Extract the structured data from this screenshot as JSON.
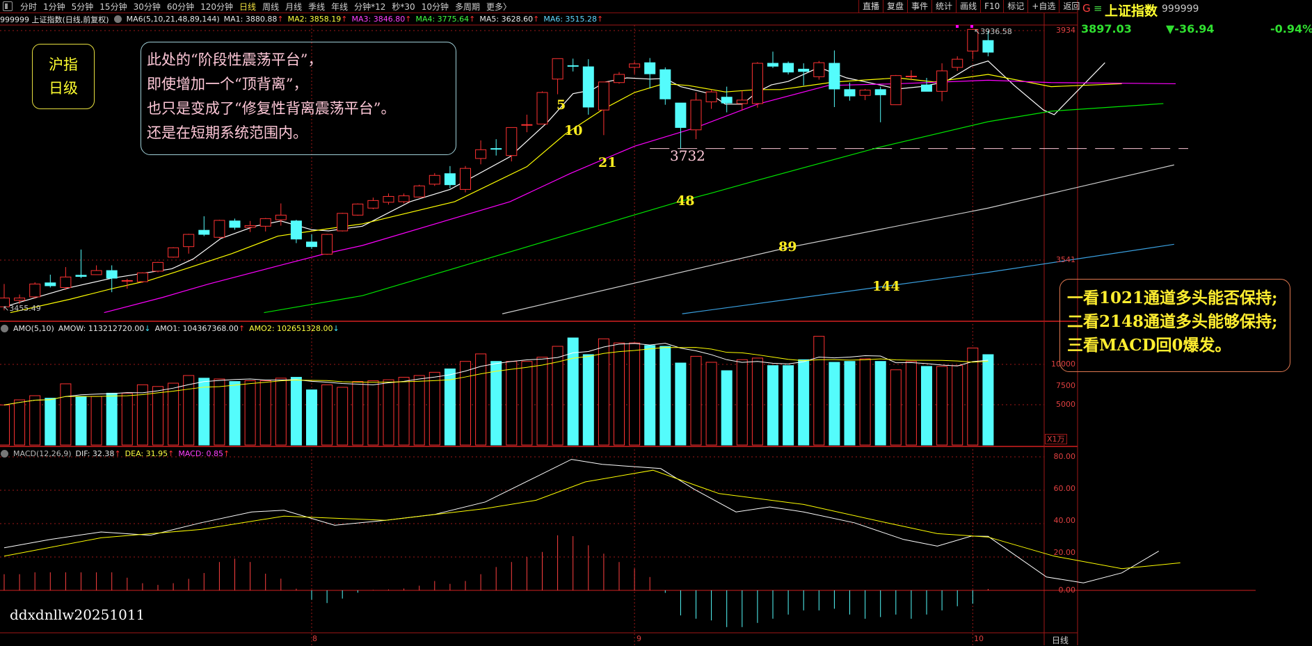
{
  "toolbar": {
    "periods": [
      "分时",
      "1分钟",
      "5分钟",
      "15分钟",
      "30分钟",
      "60分钟",
      "120分钟",
      "日线",
      "周线",
      "月线",
      "季线",
      "年线",
      "分钟*12",
      "秒*30",
      "10分钟",
      "多周期",
      "更多〉"
    ],
    "active_period": "日线",
    "right_buttons": [
      "直播",
      "复盘",
      "事件",
      "统计",
      "画线",
      "F10",
      "标记",
      "+自选",
      "返回"
    ]
  },
  "quote": {
    "g_label": "G",
    "menu_icon": "≡",
    "name": "上证指数",
    "code": "999999",
    "price": "3897.03",
    "change": "▼-36.94",
    "change_pct": "-0.94%"
  },
  "ma_header": {
    "title": "999999 上证指数(日线,前复权)",
    "indicator": "MA6(5,10,21,48,89,144)",
    "items": [
      {
        "label": "MA1: 3880.88",
        "arrow": "↑"
      },
      {
        "label": "MA2: 3858.19",
        "arrow": "↑"
      },
      {
        "label": "MA3: 3846.80",
        "arrow": "↑"
      },
      {
        "label": "MA4: 3775.64",
        "arrow": "↑"
      },
      {
        "label": "MA5: 3628.60",
        "arrow": "↑"
      },
      {
        "label": "MA6: 3515.28",
        "arrow": "↑"
      }
    ]
  },
  "amo_header": {
    "indicator": "AMO(5,10)",
    "items": [
      {
        "label": "AMOW: 113212720.00",
        "arrow": "↓"
      },
      {
        "label": "AMO1: 104367368.00",
        "arrow": "↑"
      },
      {
        "label": "AMO2: 102651328.00",
        "arrow": "↓"
      }
    ]
  },
  "macd_header": {
    "indicator": "MACD(12,26,9)",
    "items": [
      {
        "label": "DIF: 32.38",
        "arrow": "↑"
      },
      {
        "label": "DEA: 31.95",
        "arrow": "↑"
      },
      {
        "label": "MACD: 0.85",
        "arrow": "↑"
      }
    ]
  },
  "annotations": {
    "left_box": [
      "沪指",
      "日级"
    ],
    "middle_box": [
      "此处的“阶段性震荡平台”，",
      "即使增加一个“顶背离”，",
      "也只是变成了“修复性背离震荡平台”。",
      "还是在短期系统范围内。"
    ],
    "right_box": [
      "一看1021通道多头能否保持;",
      "二看2148通道多头能够保持;",
      "三看MACD回0爆发。"
    ],
    "ma_labels": [
      "5",
      "10",
      "21",
      "48",
      "89",
      "144"
    ],
    "watermark": "ddxdnllw20251011",
    "high_marker": "3936.58",
    "low_marker": "3455.49",
    "support_label": "3732"
  },
  "axes": {
    "price_ticks": [
      "3934",
      "3541"
    ],
    "volume_ticks": [
      "10000",
      "7500",
      "5000"
    ],
    "volume_unit": "X1万",
    "macd_ticks": [
      "80.00",
      "60.00",
      "40.00",
      "20.00",
      "0.00"
    ],
    "month_labels": [
      "8",
      "9",
      "10"
    ],
    "period_label": "日线"
  },
  "colors": {
    "up": "#ff3232",
    "down": "#54fcfc",
    "ma": [
      "#ffffff",
      "#ffff00",
      "#ff00ff",
      "#00e600",
      "#d0d0d0",
      "#3aa0e0"
    ],
    "grid": "#a01818"
  },
  "chart_data": [
    {
      "type": "candlestick",
      "price_range": [
        3430,
        3960
      ],
      "month_start_index": [
        20,
        41,
        63
      ],
      "support_line": 3732,
      "ohlc": [
        [
          3461,
          3500,
          3455,
          3476
        ],
        [
          3472,
          3482,
          3466,
          3476
        ],
        [
          3478,
          3503,
          3475,
          3500
        ],
        [
          3502,
          3516,
          3494,
          3497
        ],
        [
          3494,
          3529,
          3490,
          3512
        ],
        [
          3515,
          3559,
          3510,
          3513
        ],
        [
          3516,
          3532,
          3516,
          3523
        ],
        [
          3523,
          3532,
          3486,
          3510
        ],
        [
          3505,
          3509,
          3492,
          3506
        ],
        [
          3504,
          3520,
          3502,
          3519
        ],
        [
          3522,
          3538,
          3520,
          3537
        ],
        [
          3546,
          3563,
          3545,
          3562
        ],
        [
          3564,
          3586,
          3552,
          3585
        ],
        [
          3592,
          3616,
          3582,
          3585
        ],
        [
          3580,
          3610,
          3578,
          3609
        ],
        [
          3608,
          3612,
          3593,
          3597
        ],
        [
          3597,
          3608,
          3589,
          3600
        ],
        [
          3599,
          3613,
          3590,
          3612
        ],
        [
          3610,
          3638,
          3600,
          3618
        ],
        [
          3608,
          3610,
          3570,
          3577
        ],
        [
          3572,
          3585,
          3560,
          3564
        ],
        [
          3551,
          3586,
          3550,
          3585
        ],
        [
          3591,
          3622,
          3590,
          3621
        ],
        [
          3618,
          3638,
          3617,
          3637
        ],
        [
          3630,
          3648,
          3628,
          3643
        ],
        [
          3640,
          3655,
          3636,
          3650
        ],
        [
          3641,
          3655,
          3638,
          3651
        ],
        [
          3649,
          3670,
          3648,
          3668
        ],
        [
          3671,
          3690,
          3668,
          3686
        ],
        [
          3689,
          3702,
          3664,
          3670
        ],
        [
          3662,
          3702,
          3657,
          3698
        ],
        [
          3715,
          3746,
          3705,
          3730
        ],
        [
          3732,
          3748,
          3720,
          3731
        ],
        [
          3720,
          3768,
          3710,
          3768
        ],
        [
          3772,
          3790,
          3760,
          3773
        ],
        [
          3774,
          3830,
          3774,
          3828
        ],
        [
          3851,
          3886,
          3825,
          3886
        ],
        [
          3874,
          3886,
          3864,
          3873
        ],
        [
          3872,
          3885,
          3790,
          3803
        ],
        [
          3798,
          3846,
          3755,
          3846
        ],
        [
          3845,
          3863,
          3843,
          3859
        ],
        [
          3871,
          3881,
          3860,
          3877
        ],
        [
          3879,
          3887,
          3835,
          3860
        ],
        [
          3867,
          3871,
          3807,
          3817
        ],
        [
          3810,
          3810,
          3732,
          3768
        ],
        [
          3764,
          3828,
          3748,
          3815
        ],
        [
          3812,
          3833,
          3800,
          3829
        ],
        [
          3820,
          3838,
          3794,
          3810
        ],
        [
          3809,
          3831,
          3797,
          3815
        ],
        [
          3809,
          3880,
          3802,
          3878
        ],
        [
          3878,
          3898,
          3870,
          3873
        ],
        [
          3878,
          3881,
          3859,
          3863
        ],
        [
          3868,
          3878,
          3840,
          3864
        ],
        [
          3855,
          3882,
          3850,
          3879
        ],
        [
          3878,
          3900,
          3803,
          3834
        ],
        [
          3833,
          3845,
          3814,
          3822
        ],
        [
          3823,
          3834,
          3815,
          3832
        ],
        [
          3833,
          3838,
          3777,
          3824
        ],
        [
          3807,
          3858,
          3807,
          3857
        ],
        [
          3855,
          3866,
          3849,
          3856
        ],
        [
          3841,
          3853,
          3830,
          3830
        ],
        [
          3830,
          3878,
          3813,
          3865
        ],
        [
          3871,
          3890,
          3865,
          3885
        ],
        [
          3899,
          3936.58,
          3885,
          3936
        ],
        [
          3917,
          3934,
          3890,
          3897.03
        ]
      ],
      "ma_lines": [
        {
          "name": "MA1",
          "points": [
            [
              0,
              3461
            ],
            [
              4.3,
              3494
            ],
            [
              7,
              3510
            ],
            [
              10.9,
              3526
            ],
            [
              12.3,
              3543
            ],
            [
              14.1,
              3578
            ],
            [
              16.3,
              3599
            ],
            [
              18,
              3608
            ],
            [
              20,
              3593
            ],
            [
              21.1,
              3591
            ],
            [
              23.3,
              3599
            ],
            [
              26.4,
              3641
            ],
            [
              29,
              3662
            ],
            [
              32.9,
              3718
            ],
            [
              35.3,
              3776
            ],
            [
              37,
              3826
            ],
            [
              38.2,
              3832
            ],
            [
              39.1,
              3846
            ],
            [
              40.5,
              3853
            ],
            [
              42,
              3851
            ],
            [
              43,
              3852
            ],
            [
              44,
              3838
            ],
            [
              45.9,
              3826
            ],
            [
              46.9,
              3808
            ],
            [
              48,
              3808
            ],
            [
              49,
              3829
            ],
            [
              49.9,
              3841
            ],
            [
              51,
              3847
            ],
            [
              53,
              3871
            ],
            [
              54.8,
              3853
            ],
            [
              56.6,
              3843
            ],
            [
              58.1,
              3834
            ],
            [
              59.6,
              3838
            ],
            [
              61.2,
              3846
            ],
            [
              62.9,
              3873
            ],
            [
              64,
              3882
            ],
            [
              65.7,
              3840
            ],
            [
              67.6,
              3798
            ],
            [
              68.3,
              3790
            ],
            [
              71.6,
              3879
            ]
          ]
        },
        {
          "name": "MA2",
          "points": [
            [
              0.4,
              3451
            ],
            [
              4.3,
              3474
            ],
            [
              7,
              3492
            ],
            [
              9.4,
              3506
            ],
            [
              11.8,
              3526
            ],
            [
              14.8,
              3552
            ],
            [
              17.8,
              3582
            ],
            [
              20.1,
              3591
            ],
            [
              23.3,
              3603
            ],
            [
              29.3,
              3641
            ],
            [
              34,
              3701
            ],
            [
              36.5,
              3757
            ],
            [
              39,
              3800
            ],
            [
              41,
              3828
            ],
            [
              42.9,
              3843
            ],
            [
              44.5,
              3840
            ],
            [
              46.9,
              3829
            ],
            [
              49,
              3833
            ],
            [
              50.5,
              3833
            ],
            [
              54,
              3846
            ],
            [
              58.1,
              3853
            ],
            [
              60.5,
              3846
            ],
            [
              64,
              3859
            ],
            [
              68.1,
              3838
            ],
            [
              72.7,
              3843
            ]
          ]
        },
        {
          "name": "MA3",
          "points": [
            [
              6.5,
              3451
            ],
            [
              10.3,
              3477
            ],
            [
              13.3,
              3500
            ],
            [
              17.8,
              3531
            ],
            [
              20.9,
              3552
            ],
            [
              23.3,
              3566
            ],
            [
              32.9,
              3641
            ],
            [
              36.8,
              3689
            ],
            [
              41,
              3736
            ],
            [
              45,
              3768
            ],
            [
              49,
              3808
            ],
            [
              53.6,
              3840
            ],
            [
              58.1,
              3843
            ],
            [
              64,
              3849
            ],
            [
              68.1,
              3845
            ],
            [
              76.2,
              3843
            ]
          ]
        },
        {
          "name": "MA4",
          "points": [
            [
              16.9,
              3451
            ],
            [
              23.3,
              3480
            ],
            [
              43.9,
              3641
            ],
            [
              45.9,
              3655
            ],
            [
              48.9,
              3677
            ],
            [
              56.9,
              3734
            ],
            [
              64,
              3778
            ],
            [
              68.1,
              3796
            ],
            [
              75.4,
              3809
            ]
          ]
        },
        {
          "name": "MA5",
          "points": [
            [
              32.4,
              3449
            ],
            [
              50.9,
              3562
            ],
            [
              64,
              3630
            ],
            [
              76.1,
              3704
            ]
          ]
        },
        {
          "name": "MA6",
          "points": [
            [
              44.1,
              3449
            ],
            [
              64,
              3520
            ],
            [
              76.1,
              3568
            ]
          ]
        }
      ]
    },
    {
      "type": "bar",
      "unit": "X1万",
      "range": [
        0,
        13500
      ],
      "volume": [
        4970,
        5600,
        6120,
        5810,
        7590,
        6030,
        6030,
        6430,
        6430,
        7470,
        7260,
        7670,
        8620,
        8290,
        8190,
        7880,
        7980,
        7980,
        8290,
        8400,
        6840,
        7470,
        7160,
        7880,
        7980,
        8090,
        8400,
        8620,
        9020,
        9440,
        10370,
        11300,
        10370,
        10370,
        10370,
        10890,
        12240,
        13280,
        11210,
        13170,
        12660,
        12660,
        12340,
        12240,
        10170,
        11000,
        10260,
        9220,
        10580,
        10780,
        9850,
        9850,
        10580,
        13480,
        10260,
        10370,
        10690,
        10370,
        9330,
        10370,
        9750,
        9750,
        9850,
        12030,
        11210
      ]
    },
    {
      "type": "line",
      "range": [
        -28,
        85
      ],
      "dif": [
        [
          0,
          25.5
        ],
        [
          3,
          30.5
        ],
        [
          6.3,
          35
        ],
        [
          9.5,
          33
        ],
        [
          12.8,
          40.5
        ],
        [
          16.1,
          47
        ],
        [
          18.2,
          48
        ],
        [
          21.5,
          39
        ],
        [
          24.8,
          42
        ],
        [
          28,
          45.5
        ],
        [
          31.3,
          53
        ],
        [
          34.6,
          68
        ],
        [
          36.9,
          78.5
        ],
        [
          38.9,
          75.5
        ],
        [
          42.7,
          73
        ],
        [
          44.9,
          60.5
        ],
        [
          47.6,
          47
        ],
        [
          49.8,
          50
        ],
        [
          52,
          47
        ],
        [
          55.3,
          40.5
        ],
        [
          58.5,
          30.5
        ],
        [
          60.7,
          26.5
        ],
        [
          62.9,
          32.5
        ],
        [
          64,
          32.38
        ],
        [
          67.8,
          8
        ],
        [
          70.2,
          4.5
        ],
        [
          72.7,
          10.5
        ],
        [
          75.1,
          23.5
        ]
      ],
      "dea": [
        [
          0,
          20.5
        ],
        [
          6.3,
          31.5
        ],
        [
          12.8,
          36.5
        ],
        [
          18.2,
          44.5
        ],
        [
          24.8,
          42
        ],
        [
          31.3,
          49
        ],
        [
          34.6,
          54
        ],
        [
          37.8,
          65
        ],
        [
          42.2,
          72
        ],
        [
          46.5,
          58
        ],
        [
          52,
          51.5
        ],
        [
          57.4,
          40.5
        ],
        [
          60.7,
          34
        ],
        [
          64,
          31.95
        ],
        [
          68.3,
          20.5
        ],
        [
          72.7,
          13
        ],
        [
          76.5,
          16.5
        ]
      ],
      "macd": [
        9.7,
        9.7,
        10.8,
        10.8,
        10.8,
        10.8,
        10.8,
        10.8,
        7.6,
        4.3,
        3.3,
        4.3,
        6.9,
        10.4,
        17,
        19,
        17,
        10,
        7,
        1,
        -5.6,
        -7.6,
        -4.9,
        -1.4,
        0.3,
        0.5,
        1.1,
        2.8,
        5.6,
        3.9,
        5.6,
        9.7,
        14,
        17,
        20,
        23,
        33,
        32.5,
        27,
        22,
        17,
        13,
        8,
        -1.5,
        -15,
        -17,
        -18,
        -22,
        -22,
        -19.5,
        -17,
        -14.5,
        -12,
        -12,
        -11,
        -14.5,
        -17,
        -16,
        -14.5,
        -17,
        -14.5,
        -12,
        -9.5,
        -8,
        0.85
      ]
    }
  ]
}
